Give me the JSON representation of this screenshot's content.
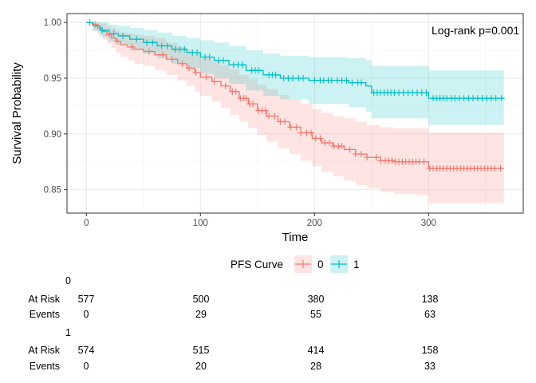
{
  "chart_data": {
    "type": "line",
    "subtype": "kaplan-meier",
    "xlabel": "Time",
    "ylabel": "Survival Probability",
    "xlim": [
      -17,
      383
    ],
    "ylim": [
      0.829,
      1.008
    ],
    "xticks": [
      0,
      100,
      200,
      300
    ],
    "yticks": [
      0.85,
      0.9,
      0.95,
      1.0
    ],
    "ytick_labels": [
      "0.85",
      "0.90",
      "0.95",
      "1.00"
    ],
    "grid": true,
    "annotation": "Log-rank p=0.001",
    "legend": {
      "title": "PFS Curve",
      "position": "bottom",
      "entries": [
        "0",
        "1"
      ]
    },
    "series": [
      {
        "name": "0",
        "color": "#F8766D",
        "x": [
          0,
          5,
          10,
          14,
          18,
          22,
          26,
          30,
          36,
          42,
          50,
          60,
          70,
          80,
          88,
          95,
          100,
          110,
          118,
          126,
          134,
          142,
          150,
          158,
          168,
          178,
          188,
          198,
          206,
          216,
          226,
          236,
          246,
          258,
          270,
          290,
          300,
          366
        ],
        "y": [
          1.0,
          0.998,
          0.995,
          0.992,
          0.989,
          0.986,
          0.983,
          0.98,
          0.978,
          0.976,
          0.974,
          0.971,
          0.967,
          0.963,
          0.959,
          0.955,
          0.951,
          0.947,
          0.943,
          0.938,
          0.932,
          0.927,
          0.921,
          0.916,
          0.911,
          0.906,
          0.901,
          0.896,
          0.892,
          0.889,
          0.886,
          0.882,
          0.879,
          0.876,
          0.875,
          0.875,
          0.869,
          0.869
        ],
        "ci_lower": [
          1.0,
          0.993,
          0.989,
          0.985,
          0.981,
          0.977,
          0.973,
          0.969,
          0.966,
          0.963,
          0.961,
          0.957,
          0.953,
          0.948,
          0.943,
          0.938,
          0.934,
          0.929,
          0.923,
          0.917,
          0.911,
          0.905,
          0.899,
          0.893,
          0.887,
          0.882,
          0.876,
          0.871,
          0.866,
          0.862,
          0.858,
          0.854,
          0.851,
          0.848,
          0.846,
          0.845,
          0.838,
          0.838
        ],
        "ci_upper": [
          1.0,
          1.0,
          1.0,
          0.999,
          0.997,
          0.995,
          0.993,
          0.991,
          0.99,
          0.989,
          0.988,
          0.986,
          0.982,
          0.978,
          0.975,
          0.972,
          0.968,
          0.965,
          0.962,
          0.958,
          0.953,
          0.949,
          0.944,
          0.94,
          0.935,
          0.931,
          0.927,
          0.922,
          0.919,
          0.916,
          0.914,
          0.911,
          0.908,
          0.906,
          0.905,
          0.905,
          0.901,
          0.901
        ],
        "censor_x": [
          8,
          20,
          27,
          40,
          55,
          67,
          75,
          84,
          90,
          96,
          105,
          112,
          122,
          128,
          131,
          135,
          138,
          140,
          143,
          146,
          151,
          154,
          157,
          160,
          165,
          170,
          174,
          179,
          184,
          188,
          193,
          197,
          201,
          205,
          209,
          213,
          217,
          221,
          224,
          231,
          236,
          241,
          246,
          254,
          258,
          262,
          265,
          268,
          271,
          274,
          277,
          280,
          283,
          286,
          289,
          292,
          296,
          301,
          304,
          307,
          310,
          313,
          316,
          319,
          322,
          325,
          328,
          331,
          334,
          337,
          340,
          343,
          346,
          349,
          352,
          355,
          358,
          363
        ]
      },
      {
        "name": "1",
        "color": "#00BFC4",
        "x": [
          0,
          6,
          12,
          20,
          28,
          38,
          50,
          62,
          75,
          88,
          100,
          112,
          125,
          140,
          155,
          170,
          195,
          230,
          245,
          250,
          300,
          366
        ],
        "y": [
          1.0,
          0.997,
          0.993,
          0.99,
          0.988,
          0.985,
          0.982,
          0.979,
          0.976,
          0.973,
          0.969,
          0.966,
          0.962,
          0.957,
          0.953,
          0.95,
          0.948,
          0.946,
          0.943,
          0.937,
          0.932,
          0.932
        ],
        "ci_lower": [
          1.0,
          0.992,
          0.987,
          0.983,
          0.98,
          0.976,
          0.972,
          0.968,
          0.963,
          0.959,
          0.954,
          0.95,
          0.945,
          0.939,
          0.934,
          0.931,
          0.927,
          0.924,
          0.92,
          0.914,
          0.908,
          0.908
        ],
        "ci_upper": [
          1.0,
          1.0,
          1.0,
          0.998,
          0.997,
          0.995,
          0.993,
          0.991,
          0.988,
          0.986,
          0.984,
          0.982,
          0.979,
          0.975,
          0.972,
          0.97,
          0.969,
          0.968,
          0.966,
          0.961,
          0.957,
          0.957
        ],
        "censor_x": [
          3,
          14,
          24,
          32,
          44,
          53,
          58,
          66,
          71,
          78,
          82,
          86,
          93,
          97,
          104,
          108,
          116,
          120,
          129,
          133,
          137,
          145,
          148,
          151,
          160,
          163,
          166,
          173,
          177,
          181,
          186,
          190,
          200,
          205,
          208,
          212,
          215,
          220,
          224,
          228,
          233,
          238,
          241,
          252,
          255,
          258,
          261,
          264,
          267,
          270,
          274,
          278,
          282,
          286,
          290,
          294,
          298,
          304,
          307,
          310,
          313,
          316,
          320,
          323,
          327,
          331,
          335,
          339,
          343,
          347,
          351,
          355,
          359,
          364
        ]
      }
    ]
  },
  "risk_table": {
    "row_labels": [
      "At Risk",
      "Events"
    ],
    "time_points": [
      0,
      100,
      200,
      300
    ],
    "strata": [
      {
        "name": "0",
        "at_risk": [
          "577",
          "500",
          "380",
          "138"
        ],
        "events": [
          "0",
          "29",
          "55",
          "63"
        ]
      },
      {
        "name": "1",
        "at_risk": [
          "574",
          "515",
          "414",
          "158"
        ],
        "events": [
          "0",
          "20",
          "28",
          "33"
        ]
      }
    ]
  }
}
